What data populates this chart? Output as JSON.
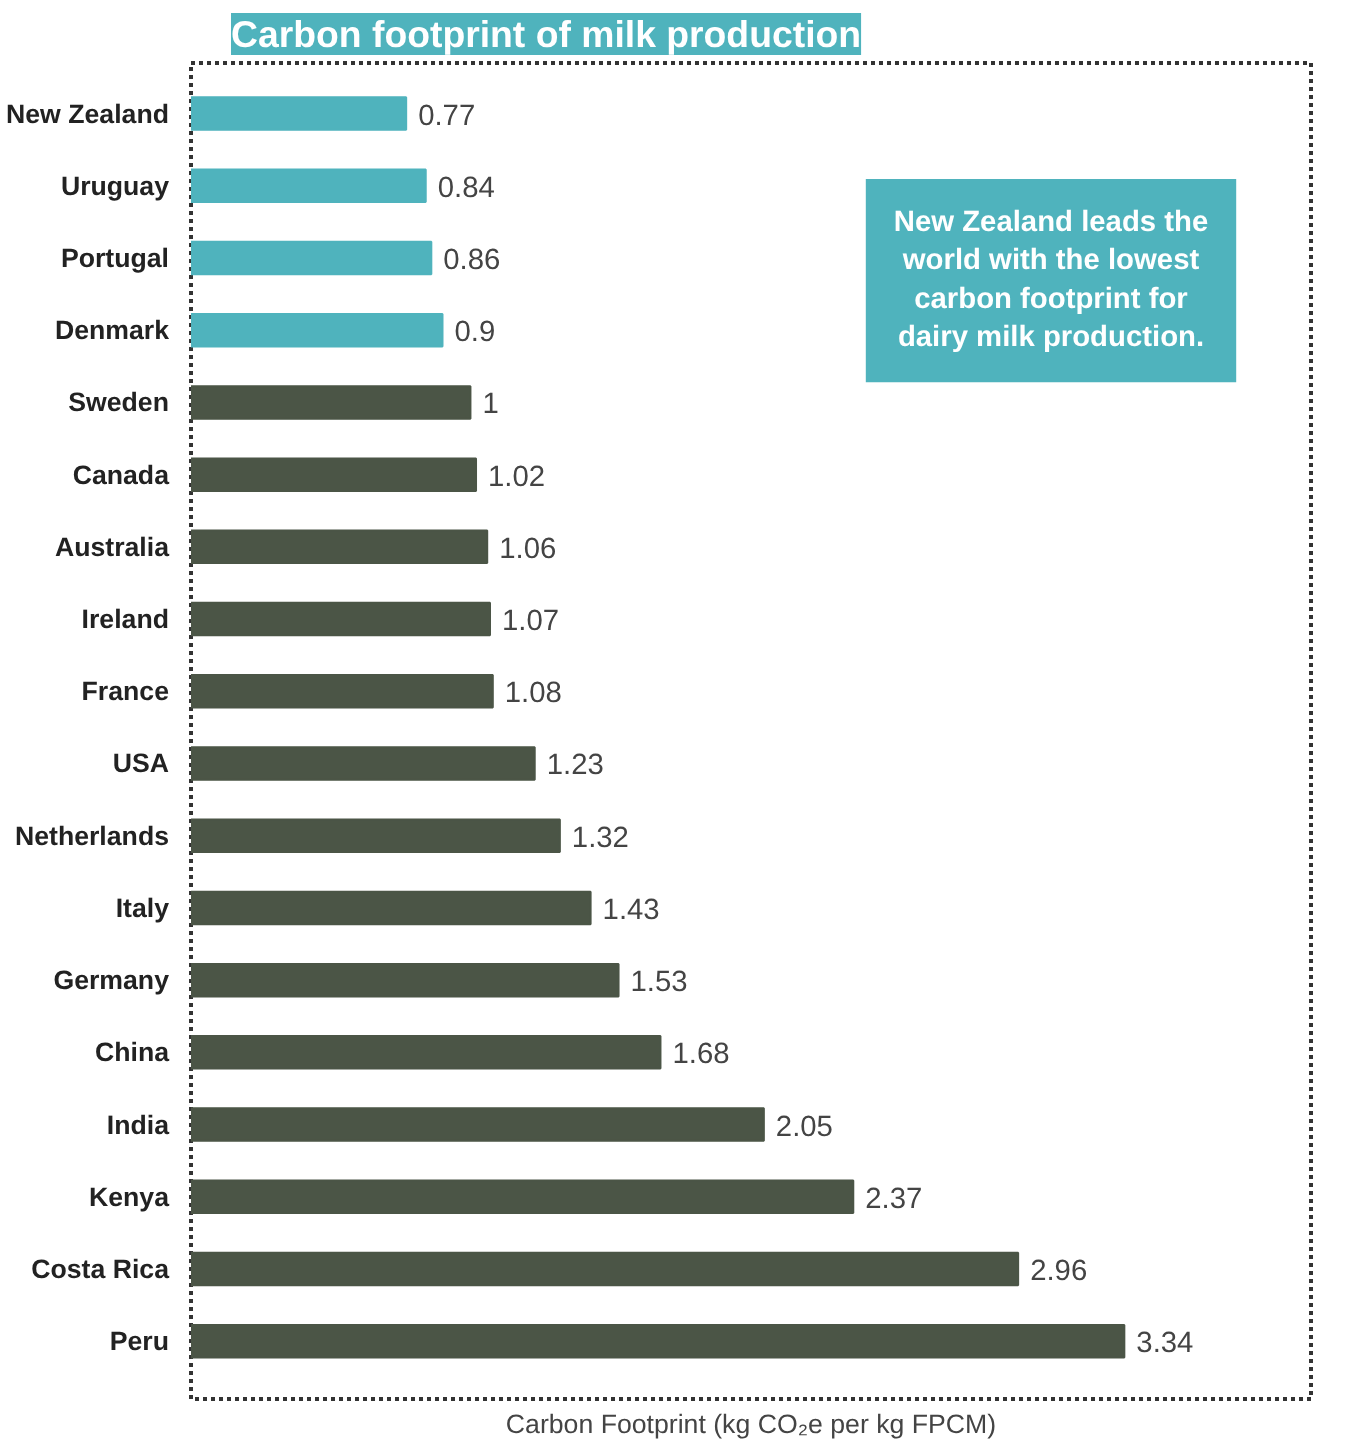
{
  "chart_data": {
    "type": "bar",
    "orientation": "horizontal",
    "title": "Carbon footprint of milk production",
    "xlabel": "Carbon Footprint (kg CO₂e per kg FPCM)",
    "categories": [
      "New Zealand",
      "Uruguay",
      "Portugal",
      "Denmark",
      "Sweden",
      "Canada",
      "Australia",
      "Ireland",
      "France",
      "USA",
      "Netherlands",
      "Italy",
      "Germany",
      "China",
      "India",
      "Kenya",
      "Costa Rica",
      "Peru"
    ],
    "values": [
      0.77,
      0.84,
      0.86,
      0.9,
      1,
      1.02,
      1.06,
      1.07,
      1.08,
      1.23,
      1.32,
      1.43,
      1.53,
      1.68,
      2.05,
      2.37,
      2.96,
      3.34
    ],
    "colors": [
      "#4fb3bd",
      "#4fb3bd",
      "#4fb3bd",
      "#4fb3bd",
      "#4b5546",
      "#4b5546",
      "#4b5546",
      "#4b5546",
      "#4b5546",
      "#4b5546",
      "#4b5546",
      "#4b5546",
      "#4b5546",
      "#4b5546",
      "#4b5546",
      "#4b5546",
      "#4b5546",
      "#4b5546"
    ],
    "data_labels": true,
    "grid": false,
    "annotations": [
      "New Zealand leads the world with the lowest carbon footprint for dairy milk production."
    ]
  }
}
